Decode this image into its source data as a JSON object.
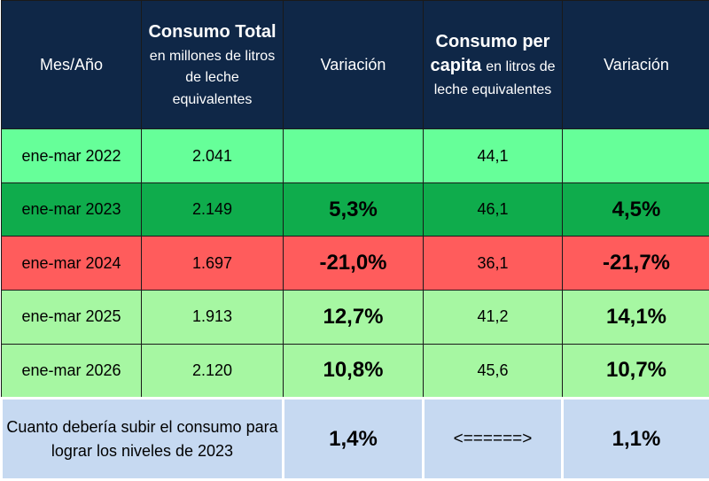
{
  "header": {
    "col1": "Mes/Año",
    "col2": {
      "bold": "Consumo Total",
      "rest": "en millones de litros de leche equivalentes"
    },
    "col3": "Variación",
    "col4": {
      "bold": "Consumo per capita",
      "rest": "en litros de leche equivalentes"
    },
    "col5": "Variación"
  },
  "rows": [
    [
      "ene-mar 2022",
      "2.041",
      null,
      "44,1",
      null
    ],
    [
      "ene-mar 2023",
      "2.149",
      "5,3%",
      "46,1",
      "4,5%"
    ],
    [
      "ene-mar 2024",
      "1.697",
      "-21,0%",
      "36,1",
      "-21,7%"
    ],
    [
      "ene-mar 2025",
      "1.913",
      "12,7%",
      "41,2",
      "14,1%"
    ],
    [
      "ene-mar 2026",
      "2.120",
      "10,8%",
      "45,6",
      "10,7%"
    ]
  ],
  "footer": {
    "label": "Cuanto debería subir el consumo para lograr los niveles de 2023",
    "total": "1,4%",
    "arrow": "<======>",
    "per_capita": "1,1%"
  }
}
